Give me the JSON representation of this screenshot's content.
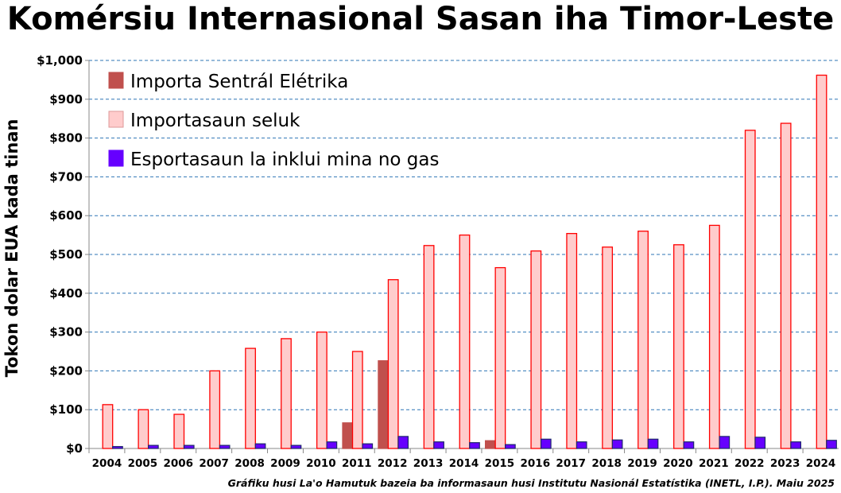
{
  "chart_data": {
    "type": "bar",
    "title": "Komérsiu Internasional Sasan iha Timor-Leste",
    "xlabel": "",
    "ylabel": "Tokon dolar EUA kada tinan",
    "ylim": [
      0,
      1000
    ],
    "yticks": [
      0,
      100,
      200,
      300,
      400,
      500,
      600,
      700,
      800,
      900,
      1000
    ],
    "ytick_labels": [
      "$0",
      "$100",
      "$200",
      "$300",
      "$400",
      "$500",
      "$600",
      "$700",
      "$800",
      "$900",
      "$1,000"
    ],
    "grid": true,
    "legend_position": "top-left",
    "categories": [
      "2004",
      "2005",
      "2006",
      "2007",
      "2008",
      "2009",
      "2010",
      "2011",
      "2012",
      "2013",
      "2014",
      "2015",
      "2016",
      "2017",
      "2018",
      "2019",
      "2020",
      "2021",
      "2022",
      "2023",
      "2024"
    ],
    "series": [
      {
        "name": "Importa Sentrál Elétrika",
        "color": "#c0504d",
        "stroke": "#c0504d",
        "values": [
          0,
          0,
          0,
          0,
          0,
          0,
          0,
          66,
          226,
          0,
          0,
          20,
          0,
          0,
          0,
          0,
          0,
          0,
          0,
          0,
          0
        ]
      },
      {
        "name": "Importasaun seluk",
        "color": "#ffcccc",
        "stroke": "#ff0000",
        "values": [
          113,
          100,
          88,
          200,
          258,
          283,
          300,
          250,
          435,
          523,
          550,
          466,
          509,
          554,
          519,
          560,
          525,
          575,
          820,
          838,
          962
        ]
      },
      {
        "name": "Esportasaun la inklui mina no gas",
        "color": "#6600ff",
        "stroke": "#1f2a6b",
        "values": [
          5,
          8,
          8,
          8,
          12,
          8,
          17,
          12,
          31,
          17,
          15,
          10,
          24,
          17,
          22,
          24,
          17,
          31,
          29,
          17,
          21
        ]
      }
    ],
    "source": "Gráfiku husi La'o Hamutuk bazeia ba informasaun  husi Institutu Nasionál Estatístika (INETL, I.P.).  Maiu 2025"
  }
}
